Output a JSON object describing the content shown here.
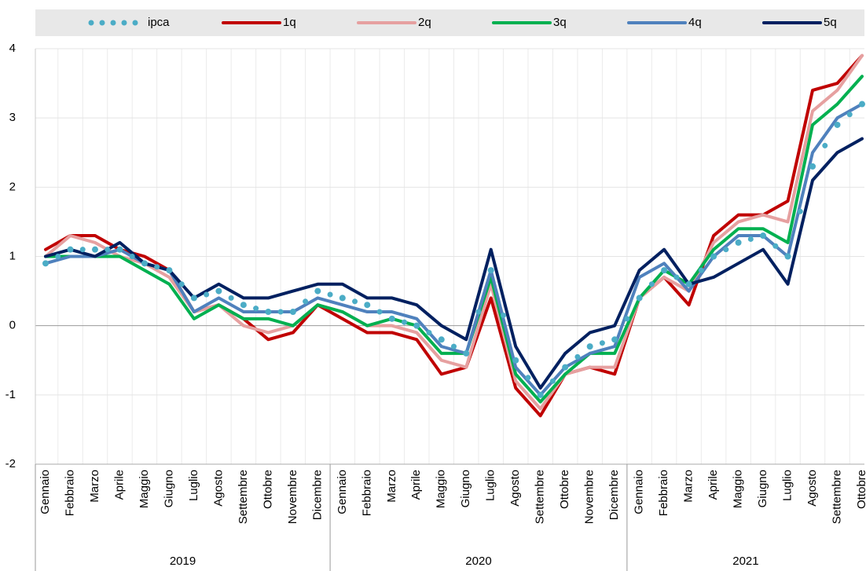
{
  "chart_data": {
    "type": "line",
    "groups": [
      {
        "label": "2019",
        "categories": [
          "Gennaio",
          "Febbraio",
          "Marzo",
          "Aprile",
          "Maggio",
          "Giugno",
          "Luglio",
          "Agosto",
          "Settembre",
          "Ottobre",
          "Novembre",
          "Dicembre"
        ]
      },
      {
        "label": "2020",
        "categories": [
          "Gennaio",
          "Febbraio",
          "Marzo",
          "Aprile",
          "Maggio",
          "Giugno",
          "Luglio",
          "Agosto",
          "Settembre",
          "Ottobre",
          "Novembre",
          "Dicembre"
        ]
      },
      {
        "label": "2021",
        "categories": [
          "Gennaio",
          "Febbraio",
          "Marzo",
          "Aprile",
          "Maggio",
          "Giugno",
          "Luglio",
          "Agosto",
          "Settembre",
          "Ottobre"
        ]
      }
    ],
    "series": [
      {
        "name": "ipca",
        "color": "#4bacc6",
        "style": "dotted",
        "values": [
          0.9,
          1.1,
          1.1,
          1.1,
          0.9,
          0.8,
          0.4,
          0.5,
          0.3,
          0.2,
          0.2,
          0.5,
          0.4,
          0.3,
          0.1,
          0.0,
          -0.2,
          -0.4,
          0.8,
          -0.5,
          -1.0,
          -0.6,
          -0.3,
          -0.2,
          0.4,
          0.8,
          0.6,
          1.0,
          1.2,
          1.3,
          1.0,
          2.3,
          2.9,
          3.2
        ]
      },
      {
        "name": "1q",
        "color": "#c00000",
        "style": "solid",
        "values": [
          1.1,
          1.3,
          1.3,
          1.1,
          1.0,
          0.8,
          0.2,
          0.3,
          0.1,
          -0.2,
          -0.1,
          0.3,
          0.1,
          -0.1,
          -0.1,
          -0.2,
          -0.7,
          -0.6,
          0.4,
          -0.9,
          -1.3,
          -0.7,
          -0.6,
          -0.7,
          0.4,
          0.7,
          0.3,
          1.3,
          1.6,
          1.6,
          1.8,
          3.4,
          3.5,
          3.9
        ]
      },
      {
        "name": "2q",
        "color": "#e6a0a0",
        "style": "solid",
        "values": [
          1.0,
          1.3,
          1.2,
          1.0,
          0.9,
          0.7,
          0.2,
          0.3,
          0.0,
          -0.1,
          0.0,
          0.3,
          0.2,
          0.0,
          0.0,
          -0.1,
          -0.5,
          -0.6,
          0.6,
          -0.8,
          -1.2,
          -0.7,
          -0.6,
          -0.6,
          0.4,
          0.7,
          0.5,
          1.2,
          1.5,
          1.6,
          1.5,
          3.1,
          3.4,
          3.9
        ]
      },
      {
        "name": "3q",
        "color": "#00b050",
        "style": "solid",
        "values": [
          1.0,
          1.0,
          1.0,
          1.0,
          0.8,
          0.6,
          0.1,
          0.3,
          0.1,
          0.1,
          0.0,
          0.3,
          0.2,
          0.0,
          0.1,
          0.0,
          -0.4,
          -0.4,
          0.7,
          -0.7,
          -1.1,
          -0.7,
          -0.4,
          -0.4,
          0.4,
          0.8,
          0.6,
          1.1,
          1.4,
          1.4,
          1.2,
          2.9,
          3.2,
          3.6
        ]
      },
      {
        "name": "4q",
        "color": "#4f81bd",
        "style": "solid",
        "values": [
          0.9,
          1.0,
          1.0,
          1.1,
          0.9,
          0.8,
          0.2,
          0.4,
          0.2,
          0.2,
          0.2,
          0.4,
          0.3,
          0.2,
          0.2,
          0.1,
          -0.3,
          -0.4,
          0.8,
          -0.6,
          -1.0,
          -0.6,
          -0.4,
          -0.3,
          0.7,
          0.9,
          0.5,
          1.0,
          1.3,
          1.3,
          1.0,
          2.5,
          3.0,
          3.2
        ]
      },
      {
        "name": "5q",
        "color": "#002060",
        "style": "solid",
        "values": [
          1.0,
          1.1,
          1.0,
          1.2,
          0.9,
          0.8,
          0.4,
          0.6,
          0.4,
          0.4,
          0.5,
          0.6,
          0.6,
          0.4,
          0.4,
          0.3,
          0.0,
          -0.2,
          1.1,
          -0.3,
          -0.9,
          -0.4,
          -0.1,
          0.0,
          0.8,
          1.1,
          0.6,
          0.7,
          0.9,
          1.1,
          0.6,
          2.1,
          2.5,
          2.7
        ]
      }
    ],
    "ylim": [
      -2,
      4
    ],
    "yticks": [
      -2,
      -1,
      0,
      1,
      2,
      3,
      4
    ],
    "grid": true,
    "legend": "top"
  }
}
